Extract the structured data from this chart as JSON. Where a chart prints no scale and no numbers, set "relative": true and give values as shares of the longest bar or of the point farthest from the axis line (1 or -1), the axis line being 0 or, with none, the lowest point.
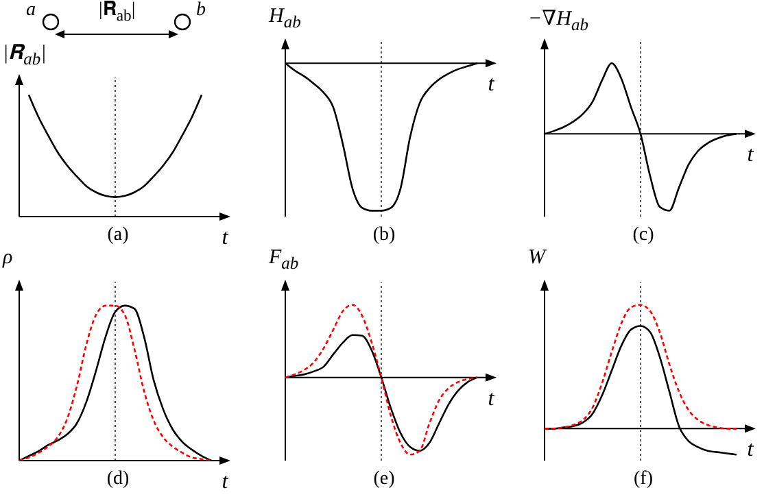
{
  "chart_data": [
    {
      "type": "line",
      "title": "(a)",
      "xlabel": "t",
      "ylabel": "|𝐑$_{ab}$|",
      "relative": true,
      "marker": "none",
      "annotations": [
        "a",
        "b",
        "|𝐑$_{ab}$|"
      ],
      "categories": [
        null,
        null,
        null,
        null,
        null,
        null,
        null,
        null,
        null,
        null,
        null,
        null,
        null,
        null,
        null,
        null,
        null,
        null,
        null,
        null,
        null
      ],
      "series": [
        {
          "color": "#000000",
          "line_style": "solid",
          "values": [
            null,
            1,
            0.82,
            0.67,
            0.53,
            0.42,
            0.33,
            0.25,
            0.2,
            0.17,
            0.16,
            0.17,
            0.2,
            0.25,
            0.33,
            0.42,
            0.53,
            0.67,
            0.82,
            1,
            null
          ]
        }
      ]
    },
    {
      "type": "line",
      "title": "(b)",
      "xlabel": "t",
      "ylabel": "H$_{ab}$",
      "relative": true,
      "marker": "none",
      "categories": [
        null,
        null,
        null,
        null,
        null,
        null,
        null,
        null,
        null,
        null,
        null,
        null,
        null,
        null,
        null,
        null,
        null,
        null,
        null,
        null,
        null
      ],
      "series": [
        {
          "color": "#000000",
          "line_style": "solid",
          "values": [
            0,
            -0.05,
            -0.09,
            -0.14,
            -0.2,
            -0.3,
            -0.55,
            -0.85,
            -0.98,
            -1,
            -1,
            -0.98,
            -0.85,
            -0.5,
            -0.27,
            -0.17,
            -0.11,
            -0.07,
            -0.04,
            -0.02,
            0
          ]
        }
      ]
    },
    {
      "type": "line",
      "title": "(c)",
      "xlabel": "t",
      "ylabel": "−∇H$_{ab}$",
      "relative": true,
      "marker": "none",
      "categories": [
        null,
        null,
        null,
        null,
        null,
        null,
        null,
        null,
        null,
        null,
        null,
        null,
        null,
        null,
        null,
        null,
        null,
        null,
        null,
        null,
        null
      ],
      "series": [
        {
          "color": "#000000",
          "line_style": "solid",
          "values": [
            0,
            0.04,
            0.09,
            0.16,
            0.26,
            0.42,
            0.7,
            0.92,
            0.72,
            0.35,
            0,
            -0.55,
            -0.95,
            -1,
            -0.7,
            -0.4,
            -0.22,
            -0.12,
            -0.06,
            -0.02,
            0
          ]
        }
      ]
    },
    {
      "type": "line",
      "title": "(d)",
      "xlabel": "t",
      "ylabel": "ρ",
      "relative": true,
      "marker": "none",
      "categories": [
        null,
        null,
        null,
        null,
        null,
        null,
        null,
        null,
        null,
        null,
        null,
        null,
        null,
        null,
        null,
        null,
        null,
        null,
        null,
        null,
        null
      ],
      "series": [
        {
          "color": "#000000",
          "line_style": "solid",
          "values": [
            0,
            0.03,
            0.06,
            0.1,
            0.13,
            0.17,
            0.24,
            0.38,
            0.58,
            0.8,
            0.96,
            1,
            0.98,
            0.8,
            0.52,
            0.33,
            0.2,
            0.12,
            0.07,
            0.03,
            0
          ]
        },
        {
          "color": "#ff0000",
          "line_style": "dashed",
          "values": [
            0,
            0.02,
            0.05,
            0.09,
            0.15,
            0.27,
            0.48,
            0.75,
            0.94,
            1,
            1,
            0.94,
            0.72,
            0.45,
            0.26,
            0.15,
            0.09,
            0.05,
            0.02,
            0.01,
            0
          ]
        }
      ]
    },
    {
      "type": "line",
      "title": "(e)",
      "xlabel": "t",
      "ylabel": "F$_{ab}$",
      "relative": true,
      "marker": "none",
      "categories": [
        null,
        null,
        null,
        null,
        null,
        null,
        null,
        null,
        null,
        null,
        null,
        null,
        null,
        null,
        null,
        null,
        null,
        null,
        null,
        null,
        null
      ],
      "series": [
        {
          "color": "#000000",
          "line_style": "solid",
          "values": [
            0,
            0.02,
            0.04,
            0.08,
            0.14,
            0.3,
            0.45,
            0.55,
            0.54,
            0.35,
            0,
            -0.4,
            -0.72,
            -0.9,
            -0.95,
            -0.85,
            -0.6,
            -0.35,
            -0.17,
            -0.06,
            0
          ]
        },
        {
          "color": "#ff0000",
          "line_style": "dashed",
          "values": [
            0,
            0.04,
            0.1,
            0.2,
            0.38,
            0.62,
            0.86,
            0.94,
            0.8,
            0.45,
            0,
            -0.5,
            -0.85,
            -1,
            -0.95,
            -0.6,
            -0.3,
            -0.14,
            -0.06,
            -0.02,
            0
          ]
        }
      ]
    },
    {
      "type": "line",
      "title": "(f)",
      "xlabel": "t",
      "ylabel": "W",
      "relative": true,
      "marker": "none",
      "categories": [
        null,
        null,
        null,
        null,
        null,
        null,
        null,
        null,
        null,
        null,
        null,
        null,
        null,
        null,
        null,
        null,
        null,
        null,
        null,
        null,
        null
      ],
      "series": [
        {
          "color": "#000000",
          "line_style": "solid",
          "values": [
            0,
            0,
            0.01,
            0.02,
            0.05,
            0.12,
            0.27,
            0.47,
            0.67,
            0.8,
            0.83,
            0.78,
            0.58,
            0.3,
            0.02,
            -0.1,
            -0.15,
            -0.18,
            -0.19,
            -0.2,
            -0.21
          ]
        },
        {
          "color": "#ff0000",
          "line_style": "dashed",
          "values": [
            0,
            0,
            0.01,
            0.03,
            0.07,
            0.17,
            0.37,
            0.62,
            0.85,
            0.98,
            1,
            0.95,
            0.78,
            0.52,
            0.3,
            0.15,
            0.07,
            0.03,
            0.01,
            0,
            0
          ]
        }
      ]
    }
  ]
}
